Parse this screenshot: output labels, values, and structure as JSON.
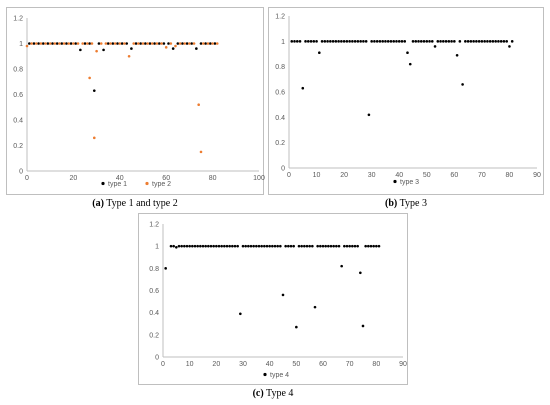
{
  "colors": {
    "black_series": "#000000",
    "orange_series": "#ED7D31",
    "axis": "#bfbfbf",
    "grid": "#d9d9d9"
  },
  "captions": {
    "a_label": "(a)",
    "a_text": "Type 1 and type 2",
    "b_label": "(b)",
    "b_text": "Type 3",
    "c_label": "(c)",
    "c_text": "Type 4"
  },
  "chart_data": [
    {
      "id": "a",
      "type": "scatter",
      "title": "",
      "xlabel": "",
      "ylabel": "",
      "xlim": [
        0,
        100
      ],
      "ylim": [
        0,
        1.2
      ],
      "xticks": [
        0,
        20,
        40,
        60,
        80,
        100
      ],
      "yticks": [
        0,
        0.2,
        0.4,
        0.6,
        0.8,
        1,
        1.2
      ],
      "ytick_labels": [
        "0",
        "0.2",
        "0.4",
        "0.6",
        "0.8",
        "1",
        "1.2"
      ],
      "grid": false,
      "legend_position": "bottom",
      "series": [
        {
          "name": "type 1",
          "color": "#000000",
          "x": [
            1,
            3,
            5,
            7,
            9,
            11,
            13,
            15,
            17,
            19,
            21,
            23,
            25,
            27,
            29,
            31,
            33,
            35,
            37,
            39,
            41,
            43,
            45,
            47,
            49,
            51,
            53,
            55,
            57,
            59,
            61,
            63,
            65,
            67,
            69,
            71,
            73,
            75,
            77,
            79,
            81
          ],
          "y": [
            1,
            1,
            1,
            1,
            1,
            1,
            1,
            1,
            1,
            1,
            1,
            0.95,
            1,
            1,
            0.63,
            1,
            0.95,
            1,
            1,
            1,
            1,
            1,
            0.96,
            1,
            1,
            1,
            1,
            1,
            1,
            1,
            1,
            0.96,
            1,
            1,
            1,
            1,
            0.96,
            1,
            1,
            1,
            1
          ]
        },
        {
          "name": "type 2",
          "color": "#ED7D31",
          "x": [
            0,
            2,
            4,
            6,
            8,
            10,
            12,
            14,
            16,
            18,
            20,
            22,
            24,
            26,
            27,
            28,
            29,
            30,
            32,
            34,
            36,
            38,
            40,
            42,
            44,
            46,
            48,
            50,
            52,
            54,
            56,
            58,
            60,
            62,
            64,
            66,
            68,
            70,
            72,
            74,
            75,
            76,
            78,
            80,
            82
          ],
          "y": [
            0.98,
            1,
            1,
            1,
            1,
            1,
            1,
            1,
            1,
            1,
            1,
            1,
            1,
            1,
            0.73,
            1,
            0.26,
            0.94,
            1,
            1,
            1,
            1,
            1,
            1,
            0.9,
            1,
            1,
            1,
            1,
            1,
            1,
            1,
            0.97,
            1,
            0.98,
            1,
            1,
            1,
            1,
            0.52,
            0.15,
            1,
            1,
            1,
            1
          ]
        }
      ]
    },
    {
      "id": "b",
      "type": "scatter",
      "title": "",
      "xlabel": "",
      "ylabel": "",
      "xlim": [
        0,
        90
      ],
      "ylim": [
        0,
        1.2
      ],
      "xticks": [
        0,
        10,
        20,
        30,
        40,
        50,
        60,
        70,
        80,
        90
      ],
      "yticks": [
        0,
        0.2,
        0.4,
        0.6,
        0.8,
        1,
        1.2
      ],
      "ytick_labels": [
        "0",
        "0.2",
        "0.4",
        "0.6",
        "0.8",
        "1",
        "1.2"
      ],
      "grid": false,
      "legend_position": "bottom",
      "series": [
        {
          "name": "type 3",
          "color": "#000000",
          "x": [
            1,
            2,
            3,
            4,
            5,
            6,
            7,
            8,
            9,
            10,
            11,
            12,
            13,
            14,
            15,
            16,
            17,
            18,
            19,
            20,
            21,
            22,
            23,
            24,
            25,
            26,
            27,
            28,
            29,
            30,
            31,
            32,
            33,
            34,
            35,
            36,
            37,
            38,
            39,
            40,
            41,
            42,
            43,
            44,
            45,
            46,
            47,
            48,
            49,
            50,
            51,
            52,
            53,
            54,
            55,
            56,
            57,
            58,
            59,
            60,
            61,
            62,
            63,
            64,
            65,
            66,
            67,
            68,
            69,
            70,
            71,
            72,
            73,
            74,
            75,
            76,
            77,
            78,
            79,
            80,
            81
          ],
          "y": [
            1,
            1,
            1,
            1,
            0.63,
            1,
            1,
            1,
            1,
            1,
            0.91,
            1,
            1,
            1,
            1,
            1,
            1,
            1,
            1,
            1,
            1,
            1,
            1,
            1,
            1,
            1,
            1,
            1,
            0.42,
            1,
            1,
            1,
            1,
            1,
            1,
            1,
            1,
            1,
            1,
            1,
            1,
            1,
            0.91,
            0.82,
            1,
            1,
            1,
            1,
            1,
            1,
            1,
            1,
            0.96,
            1,
            1,
            1,
            1,
            1,
            1,
            1,
            0.89,
            1,
            0.66,
            1,
            1,
            1,
            1,
            1,
            1,
            1,
            1,
            1,
            1,
            1,
            1,
            1,
            1,
            1,
            1,
            0.96,
            1
          ]
        }
      ]
    },
    {
      "id": "c",
      "type": "scatter",
      "title": "",
      "xlabel": "",
      "ylabel": "",
      "xlim": [
        0,
        90
      ],
      "ylim": [
        0,
        1.2
      ],
      "xticks": [
        0,
        10,
        20,
        30,
        40,
        50,
        60,
        70,
        80,
        90
      ],
      "yticks": [
        0,
        0.2,
        0.4,
        0.6,
        0.8,
        1,
        1.2
      ],
      "ytick_labels": [
        "0",
        "0.2",
        "0.4",
        "0.6",
        "0.8",
        "1",
        "1.2"
      ],
      "grid": false,
      "legend_position": "bottom",
      "series": [
        {
          "name": "type 4",
          "color": "#000000",
          "x": [
            1,
            3,
            4,
            5,
            6,
            7,
            8,
            9,
            10,
            11,
            12,
            13,
            14,
            15,
            16,
            17,
            18,
            19,
            20,
            21,
            22,
            23,
            24,
            25,
            26,
            27,
            28,
            29,
            30,
            31,
            32,
            33,
            34,
            35,
            36,
            37,
            38,
            39,
            40,
            41,
            42,
            43,
            44,
            45,
            46,
            47,
            48,
            49,
            50,
            51,
            52,
            53,
            54,
            55,
            56,
            57,
            58,
            59,
            60,
            61,
            62,
            63,
            64,
            65,
            66,
            67,
            68,
            69,
            70,
            71,
            72,
            73,
            74,
            75,
            76,
            77,
            78,
            79,
            80,
            81
          ],
          "y": [
            0.8,
            1,
            1,
            0.99,
            1,
            1,
            1,
            1,
            1,
            1,
            1,
            1,
            1,
            1,
            1,
            1,
            1,
            1,
            1,
            1,
            1,
            1,
            1,
            1,
            1,
            1,
            1,
            0.39,
            1,
            1,
            1,
            1,
            1,
            1,
            1,
            1,
            1,
            1,
            1,
            1,
            1,
            1,
            1,
            0.56,
            1,
            1,
            1,
            1,
            0.27,
            1,
            1,
            1,
            1,
            1,
            1,
            0.45,
            1,
            1,
            1,
            1,
            1,
            1,
            1,
            1,
            1,
            0.82,
            1,
            1,
            1,
            1,
            1,
            1,
            0.76,
            0.28,
            1,
            1,
            1,
            1,
            1,
            1
          ]
        }
      ]
    }
  ]
}
